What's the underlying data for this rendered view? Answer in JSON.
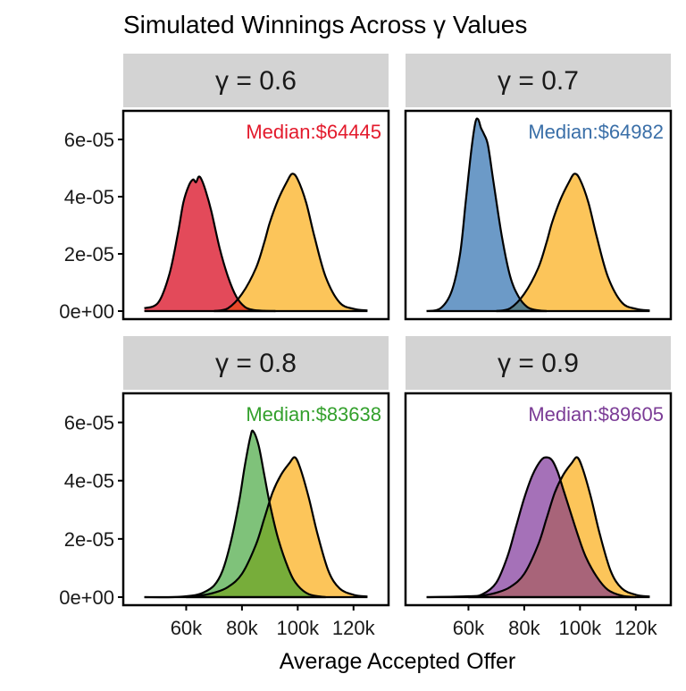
{
  "chart_data": {
    "type": "area",
    "title": "Simulated Winnings Across γ Values",
    "xlabel": "Average Accepted Offer",
    "ylabel": "",
    "xlim": [
      40000,
      130000
    ],
    "ylim": [
      0,
      7e-05
    ],
    "x_ticks": [
      {
        "value": 60000,
        "label": "60k"
      },
      {
        "value": 80000,
        "label": "80k"
      },
      {
        "value": 100000,
        "label": "100k"
      },
      {
        "value": 120000,
        "label": "120k"
      }
    ],
    "y_ticks": [
      {
        "value": 0,
        "label": "0e+00"
      },
      {
        "value": 2e-05,
        "label": "2e-05"
      },
      {
        "value": 4e-05,
        "label": "4e-05"
      },
      {
        "value": 6e-05,
        "label": "6e-05"
      }
    ],
    "reference_color": "#fcc55a",
    "facets": [
      {
        "strip": "γ = 0.6",
        "median_label": "Median:$64445",
        "color": "#e31a2c",
        "fill": "#e34a5a",
        "overlap_fill": "#e8482a",
        "reference": {
          "x": [
            70000,
            75000,
            80000,
            85000,
            88000,
            90000,
            93000,
            96000,
            98000,
            100000,
            103000,
            106000,
            110000,
            115000,
            120000,
            125000
          ],
          "y": [
            0,
            1e-06,
            6e-06,
            1.5e-05,
            2.4e-05,
            3.1e-05,
            3.9e-05,
            4.5e-05,
            4.8e-05,
            4.6e-05,
            3.8e-05,
            2.6e-05,
            1.2e-05,
            3e-06,
            8e-07,
            2e-07
          ]
        },
        "density": {
          "x": [
            45000,
            50000,
            54000,
            57000,
            59000,
            61000,
            62500,
            63500,
            64500,
            65500,
            67000,
            69000,
            72000,
            75000,
            78000,
            81000,
            84000,
            88000,
            92000
          ],
          "y": [
            1e-06,
            3e-06,
            1.3e-05,
            2.7e-05,
            3.8e-05,
            4.4e-05,
            4.6e-05,
            4.5e-05,
            4.7e-05,
            4.6e-05,
            4.2e-05,
            3.5e-05,
            2.2e-05,
            1.2e-05,
            5e-06,
            1.5e-06,
            4e-07,
            1e-07,
            0
          ]
        }
      },
      {
        "strip": "γ = 0.7",
        "median_label": "Median:$64982",
        "color": "#3a6fa8",
        "fill": "#6c9ac7",
        "overlap_fill": "#587e8a",
        "reference": {
          "x": [
            70000,
            75000,
            80000,
            85000,
            88000,
            90000,
            93000,
            96000,
            98000,
            100000,
            103000,
            106000,
            110000,
            115000,
            120000,
            125000
          ],
          "y": [
            0,
            1e-06,
            6e-06,
            1.5e-05,
            2.4e-05,
            3.1e-05,
            3.9e-05,
            4.5e-05,
            4.8e-05,
            4.6e-05,
            3.8e-05,
            2.6e-05,
            1.2e-05,
            3e-06,
            8e-07,
            2e-07
          ]
        },
        "density": {
          "x": [
            45000,
            50000,
            54000,
            57000,
            59000,
            61000,
            62500,
            63500,
            64500,
            65500,
            67000,
            69000,
            72000,
            75000,
            78000,
            81000,
            84000,
            88000
          ],
          "y": [
            0,
            1e-06,
            7e-06,
            2e-05,
            3.8e-05,
            5.6e-05,
            6.6e-05,
            6.7e-05,
            6.4e-05,
            6.2e-05,
            5.8e-05,
            4.5e-05,
            2.6e-05,
            1.2e-05,
            5e-06,
            1.5e-06,
            4e-07,
            0
          ]
        }
      },
      {
        "strip": "γ = 0.8",
        "median_label": "Median:$83638",
        "color": "#33a02c",
        "fill": "#7fc27a",
        "overlap_fill": "#77ad3a",
        "reference": {
          "x": [
            60000,
            65000,
            70000,
            75000,
            80000,
            85000,
            88000,
            91000,
            94000,
            97000,
            99000,
            101000,
            104000,
            107000,
            111000,
            115000,
            120000,
            125000
          ],
          "y": [
            0,
            5e-07,
            1.5e-06,
            3.5e-06,
            8e-06,
            1.8e-05,
            2.7e-05,
            3.6e-05,
            4.2e-05,
            4.6e-05,
            4.8e-05,
            4.4e-05,
            3.4e-05,
            2.2e-05,
            9e-06,
            3e-06,
            8e-07,
            2e-07
          ]
        },
        "density": {
          "x": [
            45000,
            55000,
            62000,
            66000,
            70000,
            73000,
            76000,
            79000,
            81000,
            83000,
            84000,
            86000,
            88000,
            90000,
            93000,
            97000,
            100000,
            104000,
            110000
          ],
          "y": [
            0,
            0,
            5e-07,
            1.5e-06,
            4e-06,
            9e-06,
            1.9e-05,
            3.3e-05,
            4.5e-05,
            5.5e-05,
            5.7e-05,
            5.2e-05,
            4.2e-05,
            3.2e-05,
            2e-05,
            9e-06,
            4e-06,
            1e-06,
            0
          ]
        }
      },
      {
        "strip": "γ = 0.9",
        "median_label": "Median:$89605",
        "color": "#7b3c96",
        "fill": "#a571b8",
        "overlap_fill": "#a86479",
        "reference": {
          "x": [
            60000,
            65000,
            70000,
            75000,
            80000,
            85000,
            88000,
            91000,
            94000,
            97000,
            99000,
            101000,
            104000,
            107000,
            111000,
            115000,
            120000,
            125000
          ],
          "y": [
            0,
            5e-07,
            1.5e-06,
            3.5e-06,
            8e-06,
            1.8e-05,
            2.7e-05,
            3.6e-05,
            4.2e-05,
            4.6e-05,
            4.8e-05,
            4.4e-05,
            3.4e-05,
            2.2e-05,
            9e-06,
            3e-06,
            8e-07,
            2e-07
          ]
        },
        "density": {
          "x": [
            45000,
            60000,
            65000,
            70000,
            74000,
            77000,
            80000,
            83000,
            86000,
            88000,
            90000,
            92000,
            94000,
            96000,
            99000,
            102000,
            106000,
            110000,
            115000,
            120000
          ],
          "y": [
            0,
            3e-07,
            1e-06,
            5e-06,
            1.4e-05,
            2.4e-05,
            3.4e-05,
            4.2e-05,
            4.7e-05,
            4.8e-05,
            4.7e-05,
            4.3e-05,
            3.7e-05,
            3.1e-05,
            2.2e-05,
            1.4e-05,
            7e-06,
            2.5e-06,
            5e-07,
            0
          ]
        }
      }
    ]
  }
}
